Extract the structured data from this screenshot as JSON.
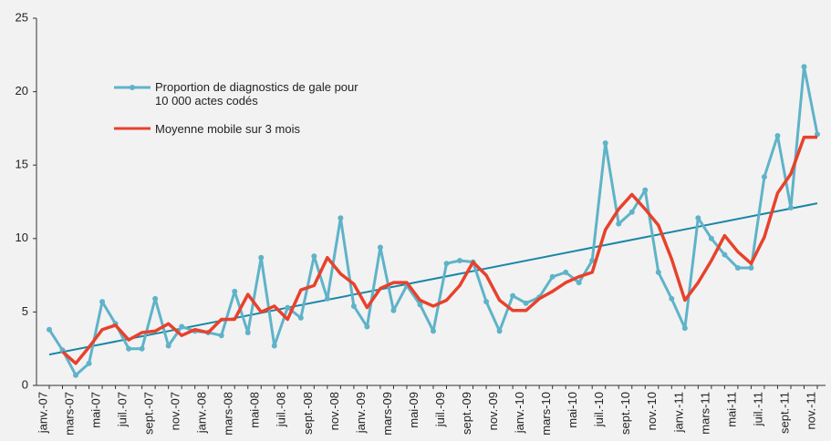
{
  "chart_data": {
    "type": "line",
    "categories": [
      "janv.-07",
      null,
      "mars-07",
      null,
      "mai-07",
      null,
      "juil.-07",
      null,
      "sept.-07",
      null,
      "nov.-07",
      null,
      "janv.-08",
      null,
      "mars-08",
      null,
      "mai-08",
      null,
      "juil.-08",
      null,
      "sept.-08",
      null,
      "nov.-08",
      null,
      "janv.-09",
      null,
      "mars-09",
      null,
      "mai-09",
      null,
      "juil.-09",
      null,
      "sept.-09",
      null,
      "nov.-09",
      null,
      "janv.-10",
      null,
      "mars-10",
      null,
      "mai-10",
      null,
      "juil.-10",
      null,
      "sept.-10",
      null,
      "nov.-10",
      null,
      "janv.-11",
      null,
      "mars-11",
      null,
      "mai-11",
      null,
      "juil.-11",
      null,
      "sept.-11",
      null,
      "nov.-11"
    ],
    "series": [
      {
        "name": "Proportion de diagnostics de gale pour 10 000 actes codés",
        "color": "#5fb3c8",
        "markers": true,
        "values": [
          3.8,
          2.4,
          0.7,
          1.5,
          5.7,
          4.2,
          2.5,
          2.5,
          5.9,
          2.7,
          4.0,
          3.7,
          3.6,
          3.4,
          6.4,
          3.6,
          8.7,
          2.7,
          5.3,
          4.6,
          8.8,
          5.9,
          11.4,
          5.4,
          4.0,
          9.4,
          5.1,
          6.8,
          5.5,
          3.7,
          8.3,
          8.5,
          8.4,
          5.7,
          3.7,
          6.1,
          5.6,
          6.0,
          7.4,
          7.7,
          7.0,
          8.5,
          16.5,
          11.0,
          11.8,
          13.3,
          7.7,
          5.9,
          3.9,
          11.4,
          10.0,
          8.9,
          8.0,
          8.0,
          14.2,
          17.0,
          12.1,
          21.7,
          17.1
        ]
      },
      {
        "name": "Moyenne mobile sur 3 mois",
        "color": "#e8412c",
        "markers": false,
        "values": [
          null,
          2.3,
          1.5,
          2.6,
          3.8,
          4.1,
          3.1,
          3.6,
          3.7,
          4.2,
          3.4,
          3.8,
          3.6,
          4.5,
          4.5,
          6.2,
          5.0,
          5.4,
          4.5,
          6.5,
          6.8,
          8.7,
          7.6,
          6.9,
          5.3,
          6.6,
          7.0,
          7.0,
          5.8,
          5.4,
          5.8,
          6.8,
          8.4,
          7.5,
          5.8,
          5.1,
          5.1,
          5.9,
          6.4,
          7.0,
          7.4,
          7.7,
          10.6,
          12.0,
          13.0,
          12.0,
          10.9,
          8.6,
          5.8,
          7.0,
          8.5,
          10.2,
          9.1,
          8.3,
          10.1,
          13.1,
          14.4,
          16.9,
          16.9
        ]
      }
    ],
    "trend": {
      "color": "#1a86a6",
      "values": [
        2.1,
        12.4
      ]
    },
    "ylim": [
      0,
      25
    ],
    "yticks": [
      0,
      5,
      10,
      15,
      20,
      25
    ]
  }
}
